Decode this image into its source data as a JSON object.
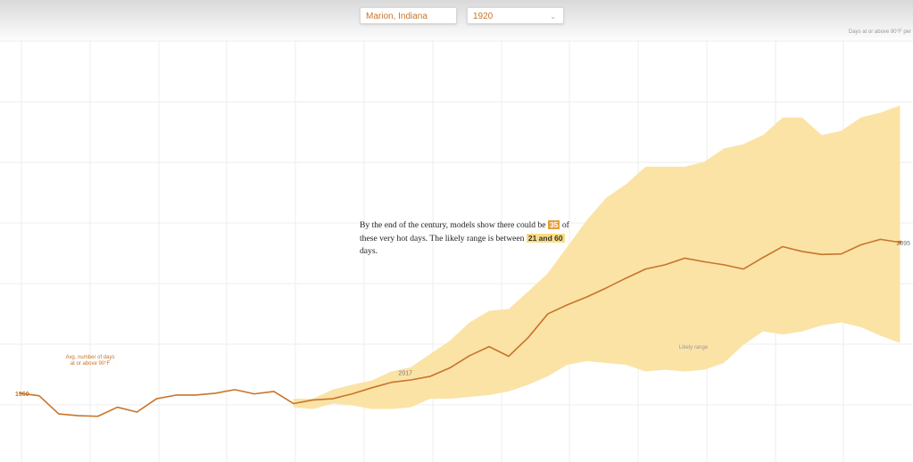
{
  "controls": {
    "location": "Marion, Indiana",
    "year": "1920",
    "unit_note": "Days at or above 90°F per"
  },
  "chart_data": {
    "type": "line",
    "y_label_lines": [
      "Avg. number of days",
      "at or above 90°F"
    ],
    "annotation": {
      "before": "By the end of the century, models show there could be",
      "main": "35",
      "middle": "of these very hot days. The likely range is between",
      "range": "21 and 60",
      "after": "days."
    },
    "x": [
      1960,
      1963,
      1966,
      1969,
      1972,
      1975,
      1978,
      1981,
      1984,
      1987,
      1990,
      1993,
      1996,
      1999,
      2002,
      2005,
      2008,
      2011,
      2014,
      2017,
      2020,
      2023,
      2026,
      2029,
      2032,
      2035,
      2038,
      2041,
      2044,
      2047,
      2050,
      2053,
      2056,
      2059,
      2062,
      2065,
      2068,
      2071,
      2074,
      2077,
      2080,
      2083,
      2086,
      2089,
      2092,
      2095
    ],
    "line": {
      "color": "#c8742a",
      "values": [
        11.9,
        11.5,
        8.5,
        8.2,
        8.1,
        9.6,
        8.8,
        11.0,
        11.6,
        11.6,
        11.9,
        12.5,
        11.8,
        12.2,
        10.2,
        10.8,
        11.0,
        11.8,
        12.8,
        13.7,
        14.1,
        14.7,
        16.1,
        18.1,
        19.6,
        18.0,
        21.1,
        25.0,
        26.5,
        27.8,
        29.3,
        30.9,
        32.4,
        33.1,
        34.2,
        33.6,
        33.1,
        32.4,
        34.3,
        36.1,
        35.3,
        34.8,
        34.9,
        36.4,
        37.3,
        36.8
      ]
    },
    "band": {
      "name": "Likely range",
      "color": "#fbe3a6",
      "upper": [
        null,
        null,
        null,
        null,
        null,
        null,
        null,
        null,
        null,
        null,
        null,
        null,
        null,
        null,
        11.0,
        11.0,
        12.5,
        13.3,
        14.0,
        15.5,
        16.2,
        18.4,
        20.6,
        23.6,
        25.5,
        25.8,
        28.7,
        31.7,
        36.1,
        40.5,
        44.2,
        46.4,
        49.3,
        49.3,
        49.3,
        50.1,
        52.3,
        53.0,
        54.5,
        57.4,
        57.4,
        54.5,
        55.2,
        57.4,
        58.2,
        59.4
      ],
      "lower": [
        null,
        null,
        null,
        null,
        null,
        null,
        null,
        null,
        null,
        null,
        null,
        null,
        null,
        null,
        9.6,
        9.3,
        10.2,
        9.9,
        9.3,
        9.3,
        9.6,
        11.0,
        11.0,
        11.3,
        11.6,
        12.2,
        13.3,
        14.7,
        16.6,
        17.2,
        16.9,
        16.6,
        15.5,
        15.8,
        15.5,
        15.8,
        16.9,
        19.9,
        22.1,
        21.6,
        22.1,
        23.1,
        23.6,
        22.8,
        21.4,
        20.2
      ]
    },
    "xlim": [
      1957,
      2097
    ],
    "ylim": [
      1,
      74
    ],
    "yticks": [
      10,
      20,
      30,
      40,
      50,
      60,
      70
    ],
    "grid": true
  }
}
